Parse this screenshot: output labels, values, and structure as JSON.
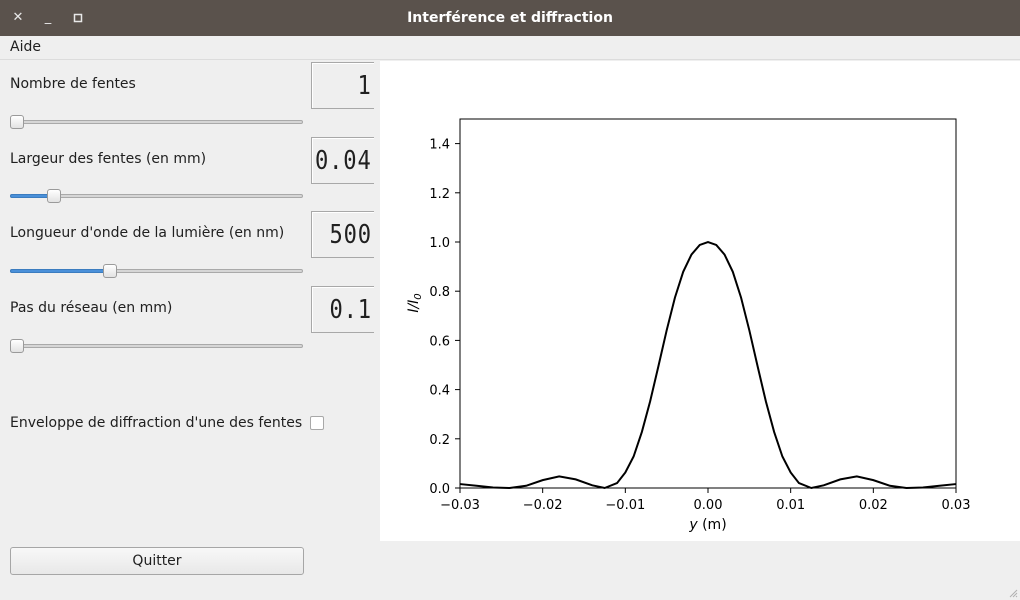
{
  "window": {
    "title": "Interférence et diffraction"
  },
  "menu": {
    "help": "Aide"
  },
  "controls": {
    "slits": {
      "label": "Nombre de fentes",
      "display": "1",
      "slider": {
        "min": 1,
        "max": 10,
        "value": 1
      }
    },
    "width": {
      "label": "Largeur des fentes (en mm)",
      "display": "0.04",
      "slider": {
        "min": 0,
        "max": 0.3,
        "value": 0.04
      }
    },
    "wavelength": {
      "label": "Longueur d'onde de la lumière (en nm)",
      "display": "500",
      "slider": {
        "min": 0,
        "max": 1500,
        "value": 500
      }
    },
    "pitch": {
      "label": "Pas du réseau (en mm)",
      "display": "0.1",
      "slider": {
        "min": 0.1,
        "max": 1,
        "value": 0.1
      }
    },
    "envelope": {
      "label": "Enveloppe de diffraction d'une des fentes",
      "checked": false
    }
  },
  "buttons": {
    "quit": "Quitter"
  },
  "colors": {
    "accent": "#4a90d9",
    "titlebar": "#5a524c"
  },
  "chart_data": {
    "type": "line",
    "title": "",
    "xlabel": "y (m)",
    "ylabel": "I/I0",
    "xlim": [
      -0.03,
      0.03
    ],
    "ylim": [
      0,
      1.5
    ],
    "xticks": [
      "−0.03",
      "−0.02",
      "−0.01",
      "0.00",
      "0.01",
      "0.02",
      "0.03"
    ],
    "yticks": [
      "0.0",
      "0.2",
      "0.4",
      "0.6",
      "0.8",
      "1.0",
      "1.2",
      "1.4"
    ],
    "grid": false,
    "series": [
      {
        "x": [
          -0.03,
          -0.028,
          -0.026,
          -0.024,
          -0.022,
          -0.02,
          -0.018,
          -0.016,
          -0.014,
          -0.0125,
          -0.011,
          -0.01,
          -0.009,
          -0.008,
          -0.007,
          -0.006,
          -0.005,
          -0.004,
          -0.003,
          -0.002,
          -0.001,
          0,
          0.001,
          0.002,
          0.003,
          0.004,
          0.005,
          0.006,
          0.007,
          0.008,
          0.009,
          0.01,
          0.011,
          0.0125,
          0.014,
          0.016,
          0.018,
          0.02,
          0.022,
          0.024,
          0.026,
          0.028,
          0.03
        ],
        "y": [
          0.016,
          0.009,
          0.002,
          0.0,
          0.009,
          0.032,
          0.047,
          0.035,
          0.011,
          0.0,
          0.02,
          0.063,
          0.128,
          0.228,
          0.352,
          0.495,
          0.641,
          0.774,
          0.879,
          0.949,
          0.988,
          1.0,
          0.988,
          0.949,
          0.879,
          0.774,
          0.641,
          0.495,
          0.352,
          0.228,
          0.128,
          0.063,
          0.02,
          0.0,
          0.011,
          0.035,
          0.047,
          0.032,
          0.009,
          0.0,
          0.002,
          0.009,
          0.016
        ]
      }
    ]
  }
}
